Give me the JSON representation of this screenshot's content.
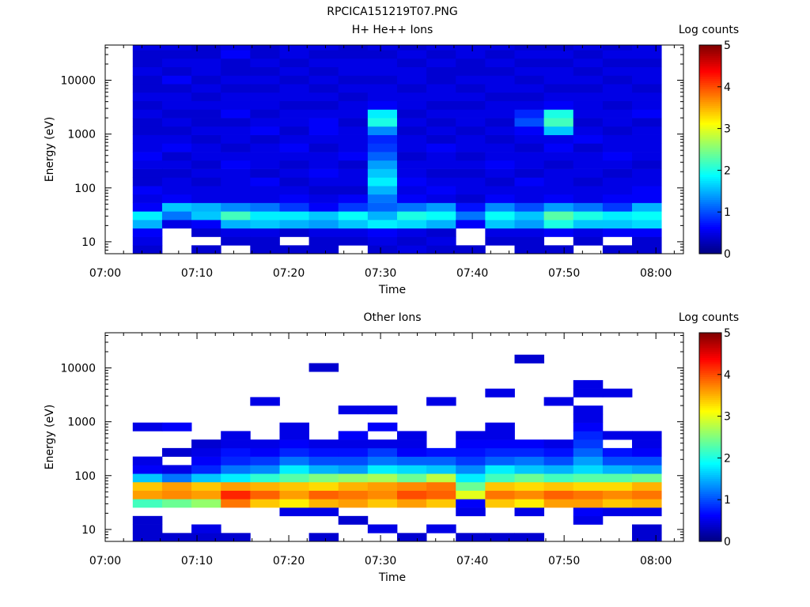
{
  "figure_title": "RPCICA151219T07.PNG",
  "chart_data": [
    {
      "type": "heatmap",
      "title": "H+ He++ Ions",
      "xlabel": "Time",
      "ylabel": "Energy (eV)",
      "x_ticks": [
        "07:00",
        "07:10",
        "07:20",
        "07:30",
        "07:40",
        "07:50",
        "08:00"
      ],
      "xlim": [
        "07:00",
        "08:03"
      ],
      "y_scale": "log",
      "y_ticks": [
        10,
        100,
        1000,
        10000
      ],
      "ylim": [
        6,
        45000
      ],
      "colorbar": {
        "label": "Log counts",
        "range": [
          0,
          5
        ],
        "ticks": [
          0,
          1,
          2,
          3,
          4,
          5
        ]
      },
      "time_bins_start_min": [
        3,
        6.2,
        9.4,
        12.6,
        15.8,
        19,
        22.2,
        25.4,
        28.6,
        31.8,
        35,
        38.2,
        41.4,
        44.6,
        47.8,
        51,
        54.2,
        57.4
      ],
      "energy_bin_edges_eV": [
        6,
        8.6,
        12.4,
        17.8,
        25.6,
        36.8,
        52.9,
        76,
        109,
        157,
        226,
        325,
        467,
        672,
        966,
        1389,
        1997,
        2871,
        4127,
        5934,
        8530,
        12263,
        17629,
        25343,
        36433,
        45000
      ],
      "log_counts": [
        [
          0.4,
          0.5,
          0.6,
          1.5,
          1.8,
          0.6,
          0.5,
          0.6,
          0.4,
          0.4,
          0.5,
          0.6,
          0.5,
          0.5,
          0.4,
          0.4,
          0.5,
          0.4,
          0.5,
          0.4,
          0.4,
          0.5,
          0.4,
          0.4,
          0.5
        ],
        [
          null,
          null,
          null,
          0.5,
          1.2,
          1.6,
          0.6,
          0.5,
          0.5,
          0.4,
          0.5,
          0.4,
          0.6,
          0.5,
          0.4,
          0.5,
          0.4,
          0.5,
          0.5,
          0.4,
          0.6,
          0.4,
          0.5,
          0.4,
          0.5
        ],
        [
          0.4,
          null,
          0.4,
          0.6,
          1.6,
          1.5,
          0.5,
          0.5,
          0.4,
          0.5,
          0.4,
          0.5,
          0.5,
          0.4,
          0.5,
          0.4,
          0.4,
          0.5,
          0.4,
          0.5,
          0.4,
          0.5,
          0.5,
          0.4,
          0.4
        ],
        [
          null,
          0.4,
          0.5,
          1.5,
          2.2,
          1.3,
          0.5,
          0.5,
          0.5,
          0.5,
          0.6,
          0.5,
          0.4,
          0.5,
          0.5,
          0.4,
          0.6,
          0.5,
          0.5,
          0.4,
          0.5,
          0.4,
          0.4,
          0.6,
          0.5
        ],
        [
          0.4,
          0.4,
          0.5,
          1.6,
          1.8,
          1.2,
          0.5,
          0.5,
          0.6,
          0.4,
          0.5,
          0.5,
          0.5,
          0.4,
          0.6,
          0.5,
          0.4,
          0.5,
          0.5,
          0.4,
          0.5,
          0.4,
          0.5,
          0.4,
          0.4
        ],
        [
          0.4,
          null,
          0.4,
          1.5,
          1.8,
          0.9,
          0.6,
          0.5,
          0.4,
          0.5,
          0.4,
          0.5,
          0.6,
          0.5,
          0.4,
          0.5,
          0.5,
          0.4,
          0.5,
          0.5,
          0.4,
          0.5,
          0.4,
          0.5,
          0.5
        ],
        [
          0.4,
          0.4,
          0.5,
          1.4,
          1.6,
          0.6,
          0.5,
          0.4,
          0.5,
          0.6,
          0.5,
          0.5,
          0.4,
          0.5,
          0.6,
          0.6,
          0.5,
          0.4,
          0.5,
          0.4,
          0.5,
          0.4,
          0.5,
          0.4,
          0.5
        ],
        [
          null,
          0.4,
          0.5,
          1.6,
          1.9,
          0.9,
          0.6,
          0.4,
          0.5,
          0.5,
          0.4,
          0.6,
          0.5,
          0.5,
          0.5,
          0.4,
          0.5,
          0.5,
          0.4,
          0.5,
          0.4,
          0.5,
          0.5,
          0.4,
          0.4
        ],
        [
          0.4,
          0.5,
          0.6,
          1.8,
          1.5,
          1.1,
          1.2,
          1.5,
          1.8,
          1.6,
          1.4,
          1.1,
          0.9,
          0.8,
          1.3,
          2.0,
          1.8,
          0.6,
          0.5,
          0.5,
          0.4,
          0.5,
          0.5,
          0.4,
          0.5
        ],
        [
          0.5,
          0.4,
          0.5,
          1.7,
          2.0,
          1.2,
          0.6,
          0.5,
          0.6,
          0.5,
          0.5,
          0.4,
          0.5,
          0.5,
          0.4,
          0.5,
          0.4,
          0.5,
          0.5,
          0.4,
          0.5,
          0.5,
          0.4,
          0.5,
          0.4
        ],
        [
          0.4,
          0.5,
          0.4,
          1.5,
          1.9,
          1.4,
          0.5,
          0.6,
          0.5,
          0.4,
          0.5,
          0.5,
          0.6,
          0.4,
          0.5,
          0.4,
          0.5,
          0.4,
          0.5,
          0.5,
          0.4,
          0.4,
          0.5,
          0.4,
          0.5
        ],
        [
          0.4,
          null,
          null,
          0.6,
          1.2,
          0.7,
          0.4,
          0.5,
          0.5,
          0.4,
          0.5,
          0.4,
          0.5,
          0.5,
          0.4,
          0.5,
          0.5,
          0.4,
          0.5,
          0.4,
          0.5,
          0.4,
          0.4,
          0.5,
          0.5
        ],
        [
          null,
          0.4,
          0.5,
          1.6,
          1.9,
          1.3,
          0.6,
          0.5,
          0.4,
          0.5,
          0.6,
          0.5,
          0.5,
          0.4,
          0.5,
          0.4,
          0.5,
          0.5,
          0.4,
          0.5,
          0.5,
          0.4,
          0.5,
          0.4,
          0.5
        ],
        [
          0.4,
          0.4,
          0.5,
          1.4,
          1.6,
          1.0,
          0.5,
          0.5,
          0.6,
          0.4,
          0.5,
          0.5,
          0.4,
          0.5,
          0.6,
          1.0,
          0.8,
          0.5,
          0.4,
          0.5,
          0.4,
          0.5,
          0.4,
          0.5,
          0.4
        ],
        [
          0.4,
          null,
          0.6,
          2.0,
          2.3,
          1.4,
          0.6,
          0.5,
          0.5,
          0.5,
          0.4,
          0.5,
          0.6,
          0.5,
          1.6,
          2.2,
          2.0,
          0.6,
          0.5,
          0.4,
          0.5,
          0.5,
          0.4,
          0.5,
          0.4
        ],
        [
          null,
          0.4,
          0.5,
          1.6,
          2.0,
          1.2,
          0.5,
          0.5,
          0.4,
          0.5,
          0.5,
          0.5,
          0.4,
          0.6,
          0.5,
          0.4,
          0.5,
          0.5,
          0.5,
          0.4,
          0.5,
          0.4,
          0.5,
          0.4,
          0.5
        ],
        [
          0.4,
          null,
          0.6,
          1.6,
          1.8,
          0.9,
          0.6,
          0.5,
          0.5,
          0.4,
          0.5,
          0.6,
          0.5,
          0.5,
          0.4,
          0.5,
          0.5,
          0.4,
          0.5,
          0.5,
          0.4,
          0.5,
          0.4,
          0.5,
          0.4
        ],
        [
          0.4,
          0.4,
          0.6,
          1.7,
          1.9,
          1.5,
          0.6,
          0.6,
          0.5,
          0.5,
          0.4,
          0.5,
          0.5,
          0.5,
          0.5,
          0.4,
          0.6,
          0.5,
          0.5,
          0.4,
          0.5,
          0.5,
          0.4,
          0.5,
          0.5
        ]
      ]
    },
    {
      "type": "heatmap",
      "title": "Other Ions",
      "xlabel": "Time",
      "ylabel": "Energy (eV)",
      "x_ticks": [
        "07:00",
        "07:10",
        "07:20",
        "07:30",
        "07:40",
        "07:50",
        "08:00"
      ],
      "xlim": [
        "07:00",
        "08:03"
      ],
      "y_scale": "log",
      "y_ticks": [
        10,
        100,
        1000,
        10000
      ],
      "ylim": [
        6,
        45000
      ],
      "colorbar": {
        "label": "Log counts",
        "range": [
          0,
          5
        ],
        "ticks": [
          0,
          1,
          2,
          3,
          4,
          5
        ]
      },
      "time_bins_start_min": [
        3,
        6.2,
        9.4,
        12.6,
        15.8,
        19,
        22.2,
        25.4,
        28.6,
        31.8,
        35,
        38.2,
        41.4,
        44.6,
        47.8,
        51,
        54.2,
        57.4
      ],
      "energy_bin_edges_eV": [
        6,
        8.6,
        12.4,
        17.8,
        25.6,
        36.8,
        52.9,
        76,
        109,
        157,
        226,
        325,
        467,
        672,
        966,
        1389,
        1997,
        2871,
        4127,
        5934,
        8530,
        12263,
        17629,
        25343,
        36433,
        45000
      ],
      "log_counts": [
        [
          0.4,
          0.4,
          0.4,
          null,
          2.2,
          3.6,
          3.4,
          1.6,
          0.6,
          0.5,
          null,
          null,
          null,
          0.5,
          null,
          null,
          null,
          null,
          null,
          null,
          null,
          null,
          null,
          null,
          null
        ],
        [
          0.4,
          null,
          null,
          null,
          2.4,
          3.7,
          3.6,
          1.2,
          0.5,
          null,
          0.4,
          null,
          null,
          0.6,
          null,
          null,
          null,
          null,
          null,
          null,
          null,
          null,
          null,
          null,
          null
        ],
        [
          0.4,
          0.5,
          null,
          null,
          2.6,
          3.6,
          3.4,
          1.6,
          0.8,
          0.6,
          0.5,
          0.4,
          null,
          null,
          null,
          null,
          null,
          null,
          null,
          null,
          null,
          null,
          null,
          null,
          null
        ],
        [
          0.4,
          null,
          null,
          null,
          3.8,
          4.2,
          3.6,
          1.8,
          1.2,
          0.8,
          0.7,
          0.5,
          0.5,
          null,
          null,
          null,
          null,
          null,
          null,
          null,
          null,
          null,
          null,
          null,
          null
        ],
        [
          null,
          null,
          null,
          null,
          3.4,
          3.9,
          3.5,
          2.1,
          1.3,
          0.9,
          0.6,
          0.5,
          null,
          null,
          null,
          null,
          0.5,
          null,
          null,
          null,
          null,
          null,
          null,
          null,
          null
        ],
        [
          null,
          null,
          null,
          0.5,
          3.2,
          3.6,
          3.4,
          2.3,
          1.8,
          1.2,
          0.8,
          0.6,
          0.5,
          0.5,
          null,
          null,
          null,
          null,
          null,
          null,
          null,
          null,
          null,
          null,
          null
        ],
        [
          0.4,
          null,
          null,
          0.5,
          3.5,
          3.9,
          3.3,
          2.5,
          1.5,
          1.0,
          0.7,
          0.5,
          null,
          null,
          null,
          null,
          null,
          null,
          null,
          null,
          0.4,
          null,
          null,
          null,
          null
        ],
        [
          null,
          null,
          0.4,
          null,
          3.6,
          3.8,
          3.5,
          2.6,
          1.4,
          1.0,
          0.7,
          0.5,
          0.6,
          null,
          null,
          0.5,
          null,
          null,
          null,
          null,
          null,
          null,
          null,
          null,
          null
        ],
        [
          null,
          0.5,
          null,
          null,
          3.4,
          3.7,
          3.6,
          2.7,
          1.8,
          1.2,
          0.9,
          0.5,
          null,
          0.6,
          null,
          0.5,
          null,
          null,
          null,
          null,
          null,
          null,
          null,
          null,
          null
        ],
        [
          0.4,
          null,
          null,
          null,
          3.6,
          4.0,
          3.7,
          2.4,
          1.7,
          1.1,
          0.6,
          0.5,
          0.5,
          null,
          null,
          null,
          null,
          null,
          null,
          null,
          null,
          null,
          null,
          null,
          null
        ],
        [
          null,
          0.5,
          null,
          null,
          3.4,
          3.9,
          3.8,
          2.8,
          1.6,
          1.1,
          0.7,
          null,
          null,
          null,
          null,
          null,
          0.5,
          null,
          null,
          null,
          null,
          null,
          null,
          null,
          null
        ],
        [
          0.4,
          null,
          null,
          0.5,
          0.6,
          3.0,
          2.4,
          1.8,
          1.3,
          0.9,
          0.7,
          0.6,
          0.5,
          null,
          null,
          null,
          null,
          null,
          null,
          null,
          null,
          null,
          null,
          null,
          null
        ],
        [
          0.4,
          null,
          null,
          null,
          3.4,
          3.8,
          3.4,
          2.2,
          1.8,
          1.1,
          0.8,
          0.6,
          0.5,
          0.5,
          null,
          null,
          null,
          0.5,
          null,
          null,
          null,
          null,
          null,
          null,
          null
        ],
        [
          0.4,
          null,
          null,
          0.5,
          3.2,
          3.7,
          3.3,
          2.4,
          1.6,
          1.2,
          0.8,
          0.6,
          null,
          null,
          null,
          null,
          null,
          null,
          null,
          null,
          null,
          0.4,
          null,
          null,
          null
        ],
        [
          null,
          null,
          null,
          null,
          3.6,
          3.9,
          3.4,
          2.2,
          1.5,
          1.0,
          0.7,
          0.5,
          null,
          null,
          null,
          null,
          0.5,
          null,
          null,
          null,
          null,
          null,
          null,
          null,
          null
        ],
        [
          null,
          null,
          0.5,
          0.6,
          3.6,
          3.8,
          3.3,
          2.3,
          1.7,
          1.4,
          1.1,
          0.9,
          0.8,
          0.6,
          0.5,
          0.5,
          null,
          0.5,
          0.5,
          null,
          null,
          null,
          null,
          null,
          null
        ],
        [
          null,
          null,
          null,
          0.5,
          3.4,
          3.7,
          3.3,
          2.3,
          1.5,
          1.0,
          0.7,
          null,
          0.5,
          null,
          null,
          null,
          null,
          0.5,
          null,
          null,
          null,
          null,
          null,
          null,
          null
        ],
        [
          0.4,
          0.4,
          null,
          0.5,
          3.5,
          3.8,
          3.5,
          2.4,
          1.4,
          1.0,
          0.6,
          0.5,
          0.5,
          null,
          null,
          null,
          null,
          null,
          null,
          null,
          null,
          null,
          null,
          null,
          null
        ]
      ]
    }
  ]
}
